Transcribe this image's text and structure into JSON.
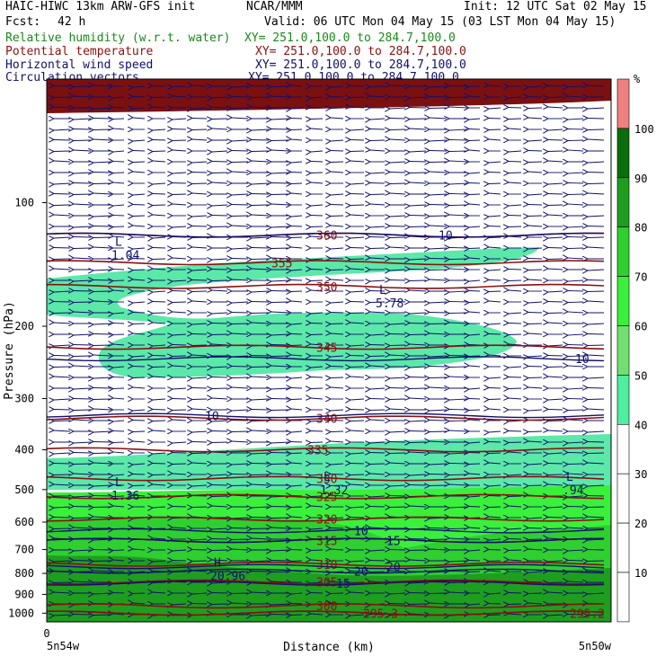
{
  "header": {
    "model": "HAIC-HIWC 13km ARW-GFS init",
    "org": "NCAR/MMM",
    "init": "Init: 12 UTC Sat 02 May 15",
    "fcst_label": "Fcst:",
    "fcst_value": "42 h",
    "valid": "Valid: 06 UTC Mon 04 May 15 (03 LST Mon 04 May 15)"
  },
  "legend": [
    {
      "name": "Relative humidity (w.r.t. water)",
      "xy": "XY= 251.0,100.0 to 284.7,100.0",
      "color": "#1a8a1a"
    },
    {
      "name": "Potential temperature",
      "xy": "XY= 251.0,100.0 to 284.7,100.0",
      "color": "#8b1010"
    },
    {
      "name": "Horizontal wind speed",
      "xy": "XY= 251.0,100.0 to 284.7,100.0",
      "color": "#10106e"
    },
    {
      "name": "Circulation vectors",
      "xy": "XY= 251.0,100.0 to 284.7,100.0",
      "color": "#10106e"
    }
  ],
  "colorbar": {
    "unit": "%",
    "ticks": [
      "100",
      "90",
      "80",
      "70",
      "60",
      "50",
      "40",
      "30",
      "20",
      "10"
    ],
    "colors": [
      "#f08080",
      "#0a6e0a",
      "#1e9e1e",
      "#2ecf2e",
      "#3af03a",
      "#70e070",
      "#50eea0",
      "#ffffff",
      "#ffffff",
      "#ffffff",
      "#ffffff"
    ]
  },
  "chart_data": {
    "type": "heatmap",
    "title": "",
    "xlabel": "Distance (km)",
    "ylabel": "Pressure (hPa)",
    "x_ticks": [
      "0"
    ],
    "x_end_labels": [
      "5n54w",
      "5n50w"
    ],
    "yticks": [
      100,
      200,
      300,
      400,
      500,
      600,
      700,
      800,
      900,
      1000
    ],
    "ylim": [
      1050,
      50
    ],
    "y_scale": "log",
    "theta_contours": [
      {
        "label": "360",
        "p": 120
      },
      {
        "label": "355",
        "p": 140
      },
      {
        "label": "350",
        "p": 160
      },
      {
        "label": "345",
        "p": 225
      },
      {
        "label": "340",
        "p": 335
      },
      {
        "label": "335",
        "p": 400
      },
      {
        "label": "330",
        "p": 470
      },
      {
        "label": "325",
        "p": 520
      },
      {
        "label": "320",
        "p": 590
      },
      {
        "label": "315",
        "p": 665
      },
      {
        "label": "310",
        "p": 760
      },
      {
        "label": "305",
        "p": 840
      },
      {
        "label": "300",
        "p": 960
      },
      {
        "label": "295.3",
        "p": 1000
      },
      {
        "label": "295.2",
        "p": 1000
      }
    ],
    "wind_contours": [
      {
        "label": "10",
        "p": 120
      },
      {
        "label": "10",
        "p": 240
      },
      {
        "label": "10",
        "p": 330
      },
      {
        "label": "10",
        "p": 630
      },
      {
        "label": "15",
        "p": 665
      },
      {
        "label": "20",
        "p": 770
      },
      {
        "label": "20",
        "p": 790
      },
      {
        "label": "15",
        "p": 845
      }
    ],
    "extrema": [
      {
        "type": "L",
        "value": "1.04",
        "p": 130
      },
      {
        "type": "L",
        "value": "5.78",
        "p": 170
      },
      {
        "type": "L",
        "value": "1.36",
        "p": 500
      },
      {
        "type": "L",
        "value": "1.32",
        "p": 485
      },
      {
        "type": "L",
        "value": ".94",
        "p": 485
      },
      {
        "type": "H",
        "value": "20.96",
        "p": 785
      }
    ]
  }
}
